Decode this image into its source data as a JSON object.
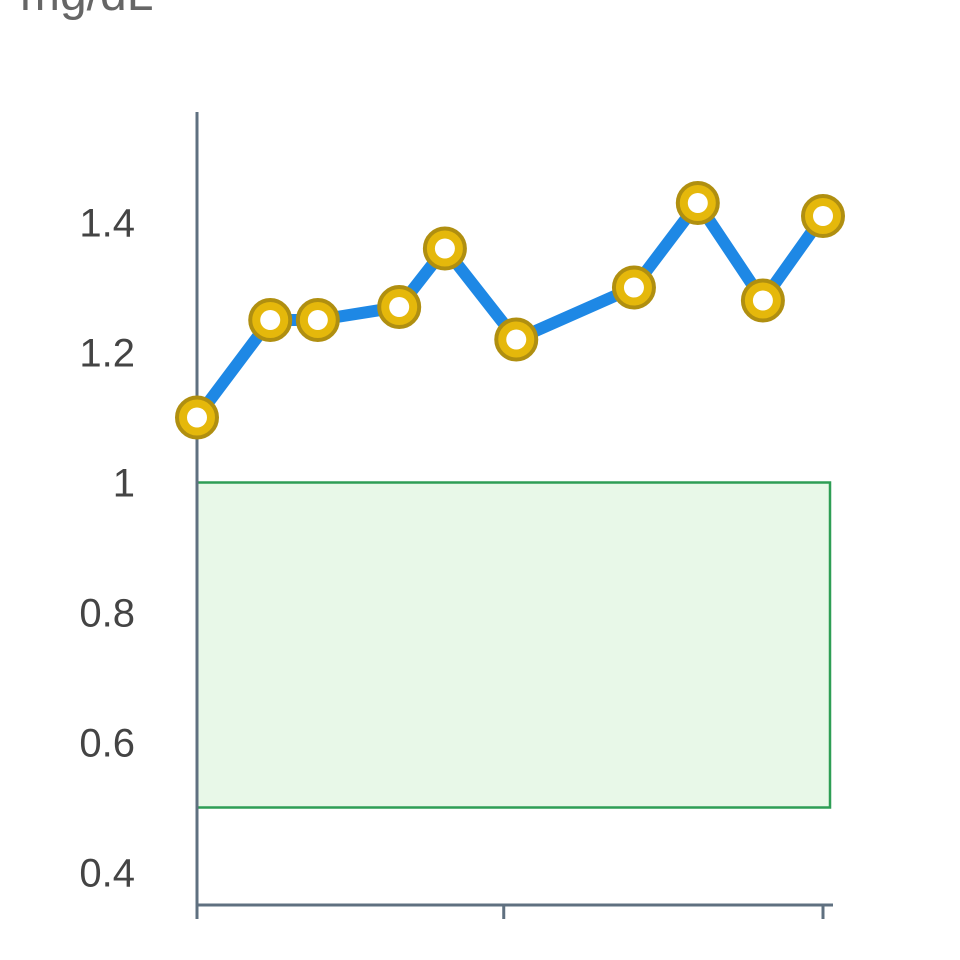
{
  "chart_data": {
    "type": "line",
    "y_label": "mg/dL",
    "x": [
      0,
      11.7,
      19.3,
      32.3,
      39.6,
      51,
      69.8,
      80,
      90.4,
      100
    ],
    "series": [
      {
        "values": [
          1.1,
          1.25,
          1.25,
          1.27,
          1.36,
          1.22,
          1.3,
          1.43,
          1.28,
          1.41
        ],
        "color": "#1e88e5",
        "marker_color": "#e5b80b"
      }
    ],
    "normal_range": [
      0.5,
      1
    ],
    "normal_range_color": "#e8f8e8",
    "xlim": [
      0,
      100
    ],
    "xticks": [
      0,
      49,
      100
    ],
    "ylim": [
      0.35,
      1.57
    ],
    "yticks": [
      0.4,
      0.6,
      0.8,
      1,
      1.2,
      1.4
    ]
  }
}
